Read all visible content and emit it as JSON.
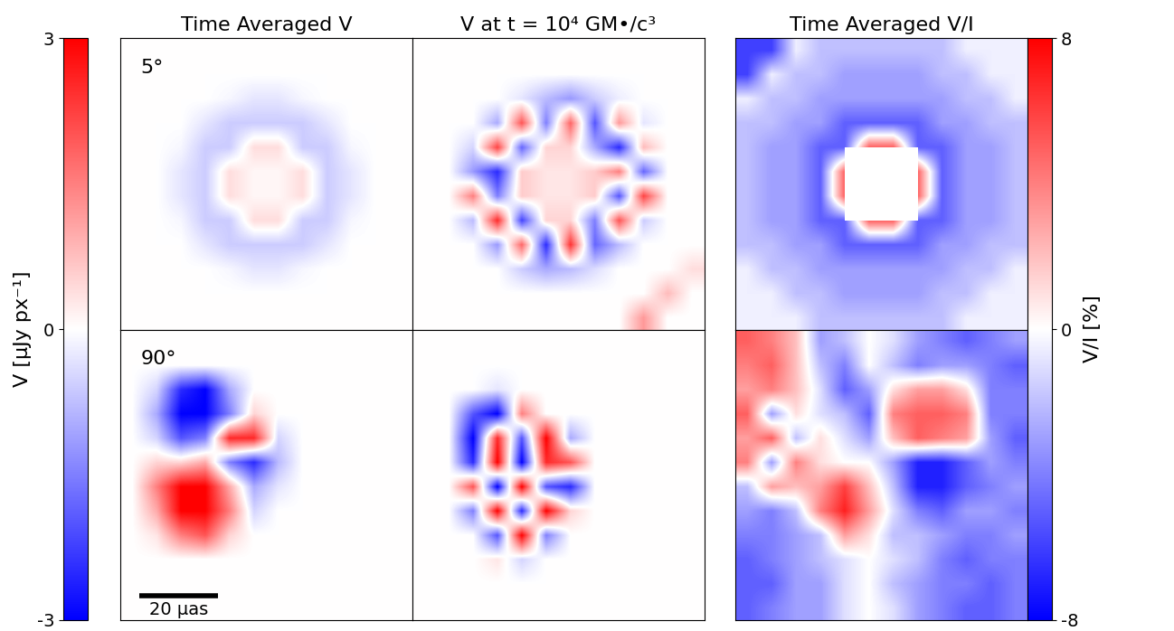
{
  "chart_data": [
    {
      "type": "heatmap",
      "title": "Time Averaged V",
      "panel_label": "5°",
      "colorbar": "V",
      "vlim": [
        -3,
        3
      ],
      "xlim": [
        -37,
        37
      ],
      "ylim": [
        -37,
        37
      ],
      "tick_labels": false,
      "cells": [
        [
          0,
          0,
          0,
          0,
          0,
          0,
          0,
          0,
          0,
          0,
          0,
          0
        ],
        [
          0,
          0,
          0,
          0,
          0,
          0,
          0,
          0,
          0,
          0,
          0,
          0
        ],
        [
          0,
          0,
          0,
          0,
          -0.1,
          -0.3,
          -0.3,
          -0.1,
          0,
          0,
          0,
          0
        ],
        [
          0,
          0,
          0,
          -0.3,
          -0.6,
          -0.6,
          -0.6,
          -0.6,
          -0.3,
          0,
          0,
          0
        ],
        [
          0,
          0,
          -0.1,
          -0.6,
          -0.6,
          0.4,
          0.4,
          -0.6,
          -0.6,
          -0.1,
          0,
          0
        ],
        [
          0,
          0,
          -0.3,
          -0.6,
          0.4,
          0.1,
          0.1,
          0.4,
          -0.6,
          -0.3,
          0,
          0
        ],
        [
          0,
          0,
          -0.3,
          -0.6,
          0.4,
          0.1,
          0.1,
          0.4,
          -0.6,
          -0.3,
          0,
          0
        ],
        [
          0,
          0,
          -0.1,
          -0.6,
          -0.6,
          0.4,
          0.4,
          -0.6,
          -0.6,
          -0.1,
          0,
          0
        ],
        [
          0,
          0,
          0,
          -0.3,
          -0.6,
          -0.6,
          -0.6,
          -0.6,
          -0.3,
          0,
          0,
          0
        ],
        [
          0,
          0,
          0,
          0,
          -0.1,
          -0.3,
          -0.3,
          -0.1,
          0,
          0,
          0,
          0
        ],
        [
          0,
          0,
          0,
          0,
          0,
          0,
          0,
          0,
          0,
          0,
          0,
          0
        ],
        [
          0,
          0,
          0,
          0,
          0,
          0,
          0,
          0,
          0,
          0,
          0,
          0
        ]
      ]
    },
    {
      "type": "heatmap",
      "title": "V at t = 10⁴ GM•/c³",
      "colorbar": "V",
      "vlim": [
        -3,
        3
      ],
      "xlim": [
        -37,
        37
      ],
      "ylim": [
        -37,
        37
      ],
      "tick_labels": false,
      "cells": [
        [
          0,
          0,
          0,
          0,
          0,
          0,
          0,
          0,
          0,
          0,
          0,
          0
        ],
        [
          0,
          0,
          0,
          0,
          0,
          0,
          0,
          0,
          0,
          0,
          0,
          0
        ],
        [
          0,
          0,
          0,
          0,
          -0.3,
          -0.8,
          -1.2,
          -0.6,
          -0.2,
          0,
          0,
          0
        ],
        [
          0,
          0,
          0,
          -1.0,
          2.0,
          -1.5,
          1.8,
          -2.0,
          1.2,
          -0.3,
          0,
          0
        ],
        [
          0,
          0,
          -0.5,
          2.2,
          -1.8,
          0.5,
          0.5,
          -1.0,
          -2.5,
          0.8,
          0,
          0
        ],
        [
          0,
          0,
          -1.2,
          -2.5,
          0.6,
          0.3,
          0.3,
          0.6,
          1.5,
          -1.8,
          0,
          0
        ],
        [
          0,
          0,
          1.5,
          -1.5,
          0.6,
          0.3,
          0.3,
          0.6,
          -2.0,
          2.2,
          0,
          0
        ],
        [
          0,
          0,
          -0.8,
          2.5,
          -2.2,
          0.5,
          0.5,
          -1.5,
          2.0,
          -0.6,
          0,
          0
        ],
        [
          0,
          0,
          0,
          -1.2,
          1.8,
          -2.5,
          2.4,
          -1.8,
          -0.8,
          0,
          0,
          0
        ],
        [
          0,
          0,
          0,
          0,
          -0.6,
          -1.0,
          -0.8,
          -0.4,
          0,
          0,
          0,
          0.4
        ],
        [
          0,
          0,
          0,
          0,
          0,
          0,
          0,
          0,
          0,
          0,
          0.8,
          0
        ],
        [
          0,
          0,
          0,
          0,
          0,
          0,
          0,
          0,
          0,
          1.2,
          0,
          0
        ]
      ]
    },
    {
      "type": "heatmap",
      "title": "Time Averaged V/I",
      "colorbar": "V/I",
      "vlim": [
        -8,
        8
      ],
      "xlim": [
        -37,
        37
      ],
      "ylim": [
        -37,
        37
      ],
      "tick_labels": false,
      "cells": [
        [
          -6,
          -6,
          -0.5,
          -2,
          -2,
          -2,
          -2,
          -2,
          -2,
          -0.5,
          -0.5,
          -0.5
        ],
        [
          -6,
          -0.5,
          -2,
          -2,
          -3,
          -3,
          -3,
          -3,
          -2,
          -2,
          -0.5,
          -0.5
        ],
        [
          -0.5,
          -2,
          -2,
          -3,
          -3,
          -3,
          -3,
          -3,
          -3,
          -2,
          -2,
          -0.5
        ],
        [
          -2,
          -2,
          -3,
          -3,
          -5,
          -5,
          -5,
          -5,
          -3,
          -3,
          -2,
          -2
        ],
        [
          -2,
          -3,
          -3,
          -5,
          -5,
          5,
          5,
          -5,
          -5,
          -3,
          -3,
          -2
        ],
        [
          -2,
          -3,
          -3,
          -5,
          5,
          null,
          null,
          5,
          -5,
          -3,
          -3,
          -2
        ],
        [
          -2,
          -3,
          -3,
          -5,
          5,
          null,
          null,
          5,
          -5,
          -3,
          -3,
          -2
        ],
        [
          -2,
          -3,
          -3,
          -5,
          -5,
          5,
          5,
          -5,
          -5,
          -3,
          -3,
          -2
        ],
        [
          -2,
          -2,
          -3,
          -3,
          -5,
          -5,
          -5,
          -5,
          -3,
          -3,
          -2,
          -2
        ],
        [
          -0.5,
          -2,
          -2,
          -3,
          -3,
          -3,
          -3,
          -3,
          -3,
          -2,
          -2,
          -0.5
        ],
        [
          -0.5,
          -0.5,
          -2,
          -2,
          -3,
          -3,
          -3,
          -3,
          -2,
          -2,
          -0.5,
          -0.5
        ],
        [
          -0.5,
          -0.5,
          -0.5,
          -2,
          -2,
          -2,
          -2,
          -2,
          -2,
          -0.5,
          -0.5,
          -0.5
        ]
      ]
    },
    {
      "type": "heatmap",
      "panel_label": "90°",
      "colorbar": "V",
      "vlim": [
        -3,
        3
      ],
      "xlim": [
        -37,
        37
      ],
      "ylim": [
        -37,
        37
      ],
      "tick_labels": false,
      "scale_bar": {
        "length": 20,
        "label": "20 μas"
      },
      "cells": [
        [
          0,
          0,
          0,
          0,
          0,
          0,
          0,
          0,
          0,
          0,
          0,
          0
        ],
        [
          0,
          0,
          0,
          0,
          0,
          0,
          0,
          0,
          0,
          0,
          0,
          0
        ],
        [
          0,
          -0.5,
          -2.5,
          -3,
          -1,
          0,
          0,
          0,
          0,
          0,
          0,
          0
        ],
        [
          0,
          -1,
          -3,
          -3,
          -1.5,
          0.5,
          0,
          0,
          0,
          0,
          0,
          0
        ],
        [
          0,
          -0.5,
          -2,
          -1.5,
          2.5,
          2.5,
          -0.5,
          0,
          0,
          0,
          0,
          0
        ],
        [
          0,
          0.5,
          0.5,
          1,
          -1.5,
          -2.5,
          -0.8,
          0,
          0,
          0,
          0,
          0
        ],
        [
          0,
          1.5,
          3,
          3,
          1,
          -1,
          -0.3,
          0,
          0,
          0,
          0,
          0
        ],
        [
          0,
          1,
          3,
          3,
          1.5,
          -0.5,
          0,
          0,
          0,
          0,
          0,
          0
        ],
        [
          0,
          0.3,
          1.5,
          2,
          0.5,
          0,
          0,
          0,
          0,
          0,
          0,
          0
        ],
        [
          0,
          0,
          0,
          0,
          0,
          0,
          0,
          0,
          0,
          0,
          0,
          0
        ],
        [
          0,
          0,
          0,
          0,
          0,
          0,
          0,
          0,
          0,
          0,
          0,
          0
        ],
        [
          0,
          0,
          0,
          0,
          0,
          0,
          0,
          0,
          0,
          0,
          0,
          0
        ]
      ]
    },
    {
      "type": "heatmap",
      "colorbar": "V",
      "vlim": [
        -3,
        3
      ],
      "xlim": [
        -37,
        37
      ],
      "ylim": [
        -37,
        37
      ],
      "tick_labels": false,
      "cells": [
        [
          0,
          0,
          0,
          0,
          0,
          0,
          0,
          0,
          0,
          0,
          0,
          0
        ],
        [
          0,
          0,
          0,
          0,
          0,
          0,
          0,
          0,
          0,
          0,
          0,
          0
        ],
        [
          0,
          0,
          0,
          -0.3,
          0,
          0,
          0,
          0,
          0,
          0,
          0,
          0
        ],
        [
          0,
          0,
          -2,
          -3,
          1.5,
          0,
          0,
          0,
          0,
          0,
          0,
          0
        ],
        [
          0,
          0,
          -3,
          2.5,
          -2,
          3,
          -1,
          0,
          0,
          0,
          0,
          0
        ],
        [
          0,
          0,
          -2.5,
          3,
          -3,
          2.5,
          2,
          0,
          0,
          0,
          0,
          0
        ],
        [
          0,
          0,
          2,
          -3,
          3,
          -2,
          -2.5,
          0,
          0,
          0,
          0,
          0
        ],
        [
          0,
          0,
          -1.5,
          3,
          -2.5,
          3,
          0.5,
          0,
          0,
          0,
          0,
          0
        ],
        [
          0,
          0,
          0,
          -2,
          3,
          -1.5,
          0,
          0,
          0,
          0,
          0,
          0
        ],
        [
          0,
          0,
          0,
          0.3,
          -0.5,
          0,
          0,
          0,
          0,
          0,
          0,
          0
        ],
        [
          0,
          0,
          0,
          0,
          0,
          0,
          0,
          0,
          0,
          0,
          0,
          0
        ],
        [
          0,
          0,
          0,
          0,
          0,
          0,
          0,
          0,
          0,
          0,
          0,
          0
        ]
      ]
    },
    {
      "type": "heatmap",
      "colorbar": "V/I",
      "vlim": [
        -8,
        8
      ],
      "xlim": [
        -37,
        37
      ],
      "ylim": [
        -37,
        37
      ],
      "tick_labels": false,
      "cells": [
        [
          5,
          4,
          2,
          -3,
          -2,
          0,
          -1,
          -3,
          -4,
          -5,
          -4,
          -3
        ],
        [
          4,
          5,
          2,
          -2,
          -4,
          0,
          -2,
          -4,
          -3,
          -3,
          -4,
          -5
        ],
        [
          3,
          4,
          2,
          -1,
          -5,
          -3,
          1,
          3,
          3,
          1,
          -4,
          -4
        ],
        [
          5,
          -3,
          1,
          -1,
          -2,
          -5,
          4,
          5,
          5,
          4,
          -4,
          -4
        ],
        [
          3,
          5,
          -2,
          1,
          -1,
          -3,
          2,
          5,
          4,
          3,
          -3,
          -5
        ],
        [
          4,
          -3,
          4,
          1,
          0,
          0,
          -3,
          -7,
          -7,
          -5,
          -3,
          -4
        ],
        [
          -2,
          3,
          2,
          3,
          6,
          2,
          -2,
          -7,
          -7,
          -5,
          -4,
          -3
        ],
        [
          -3,
          -4,
          -2,
          4,
          7,
          3,
          -1,
          -4,
          -5,
          -3,
          -3,
          -4
        ],
        [
          -4,
          -4,
          -3,
          -2,
          3,
          1,
          -2,
          -2,
          -3,
          -4,
          -4,
          -3
        ],
        [
          -5,
          -4,
          -3,
          -2,
          -1,
          0,
          -1,
          -2,
          -4,
          -5,
          -4,
          -4
        ],
        [
          -5,
          -5,
          -3,
          -3,
          -1,
          0,
          -2,
          -3,
          -4,
          -4,
          -5,
          -4
        ],
        [
          -5,
          -4,
          -3,
          -3,
          -1,
          0,
          -1,
          -3,
          -4,
          -5,
          -5,
          -4
        ]
      ]
    },
    {
      "type": "colorbar",
      "name": "V",
      "label": "V [μJy px⁻¹]",
      "ylim": [
        -3,
        3
      ],
      "yticks": [
        -3,
        0,
        3
      ]
    },
    {
      "type": "colorbar",
      "name": "V/I",
      "label": "V/I [%]",
      "ylim": [
        -8,
        8
      ],
      "yticks": [
        -8,
        0,
        8
      ]
    }
  ]
}
